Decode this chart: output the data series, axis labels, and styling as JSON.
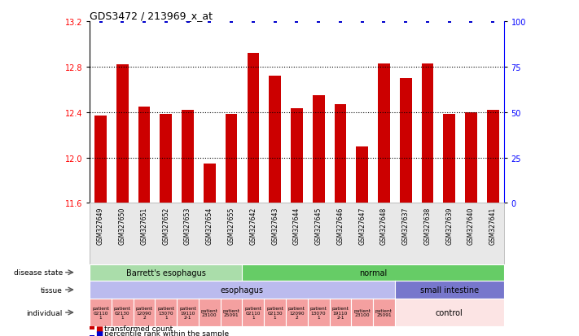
{
  "title": "GDS3472 / 213969_x_at",
  "samples": [
    "GSM327649",
    "GSM327650",
    "GSM327651",
    "GSM327652",
    "GSM327653",
    "GSM327654",
    "GSM327655",
    "GSM327642",
    "GSM327643",
    "GSM327644",
    "GSM327645",
    "GSM327646",
    "GSM327647",
    "GSM327648",
    "GSM327637",
    "GSM327638",
    "GSM327639",
    "GSM327640",
    "GSM327641"
  ],
  "bar_values": [
    12.37,
    12.82,
    12.45,
    12.38,
    12.42,
    11.95,
    12.38,
    12.92,
    12.72,
    12.43,
    12.55,
    12.47,
    12.1,
    12.83,
    12.7,
    12.83,
    12.38,
    12.4,
    12.42
  ],
  "percentile_values": [
    100,
    100,
    100,
    100,
    100,
    100,
    100,
    100,
    100,
    100,
    100,
    100,
    100,
    100,
    100,
    100,
    100,
    100,
    100
  ],
  "ylim_left": [
    11.6,
    13.2
  ],
  "yticks_left": [
    11.6,
    12.0,
    12.4,
    12.8,
    13.2
  ],
  "yticks_right": [
    0,
    25,
    50,
    75,
    100
  ],
  "bar_color": "#cc0000",
  "dot_color": "#0000cc",
  "disease_state_row": {
    "label": "disease state",
    "groups": [
      {
        "label": "Barrett's esophagus",
        "start": 0,
        "end": 7,
        "color": "#aaddaa"
      },
      {
        "label": "normal",
        "start": 7,
        "end": 19,
        "color": "#66cc66"
      }
    ]
  },
  "tissue_row": {
    "label": "tissue",
    "groups": [
      {
        "label": "esophagus",
        "start": 0,
        "end": 14,
        "color": "#bbbbee"
      },
      {
        "label": "small intestine",
        "start": 14,
        "end": 19,
        "color": "#7777cc"
      }
    ]
  },
  "individual_row": {
    "label": "individual",
    "cells": [
      {
        "label": "patient\n02110\n1",
        "start": 0,
        "end": 1,
        "color": "#f4a0a0"
      },
      {
        "label": "patient\n02130\n1",
        "start": 1,
        "end": 2,
        "color": "#f4a0a0"
      },
      {
        "label": "patient\n12090\n2",
        "start": 2,
        "end": 3,
        "color": "#f4a0a0"
      },
      {
        "label": "patient\n13070\n1",
        "start": 3,
        "end": 4,
        "color": "#f4a0a0"
      },
      {
        "label": "patient\n19110\n2-1",
        "start": 4,
        "end": 5,
        "color": "#f4a0a0"
      },
      {
        "label": "patient\n23100",
        "start": 5,
        "end": 6,
        "color": "#f4a0a0"
      },
      {
        "label": "patient\n25091",
        "start": 6,
        "end": 7,
        "color": "#f4a0a0"
      },
      {
        "label": "patient\n02110\n1",
        "start": 7,
        "end": 8,
        "color": "#f4a0a0"
      },
      {
        "label": "patient\n02130\n1",
        "start": 8,
        "end": 9,
        "color": "#f4a0a0"
      },
      {
        "label": "patient\n12090\n2",
        "start": 9,
        "end": 10,
        "color": "#f4a0a0"
      },
      {
        "label": "patient\n13070\n1",
        "start": 10,
        "end": 11,
        "color": "#f4a0a0"
      },
      {
        "label": "patient\n19110\n2-1",
        "start": 11,
        "end": 12,
        "color": "#f4a0a0"
      },
      {
        "label": "patient\n23100",
        "start": 12,
        "end": 13,
        "color": "#f4a0a0"
      },
      {
        "label": "patient\n25091",
        "start": 13,
        "end": 14,
        "color": "#f4a0a0"
      },
      {
        "label": "control",
        "start": 14,
        "end": 19,
        "color": "#fce4e4"
      }
    ]
  },
  "legend_items": [
    {
      "color": "#cc0000",
      "label": "transformed count"
    },
    {
      "color": "#0000cc",
      "label": "percentile rank within the sample"
    }
  ]
}
